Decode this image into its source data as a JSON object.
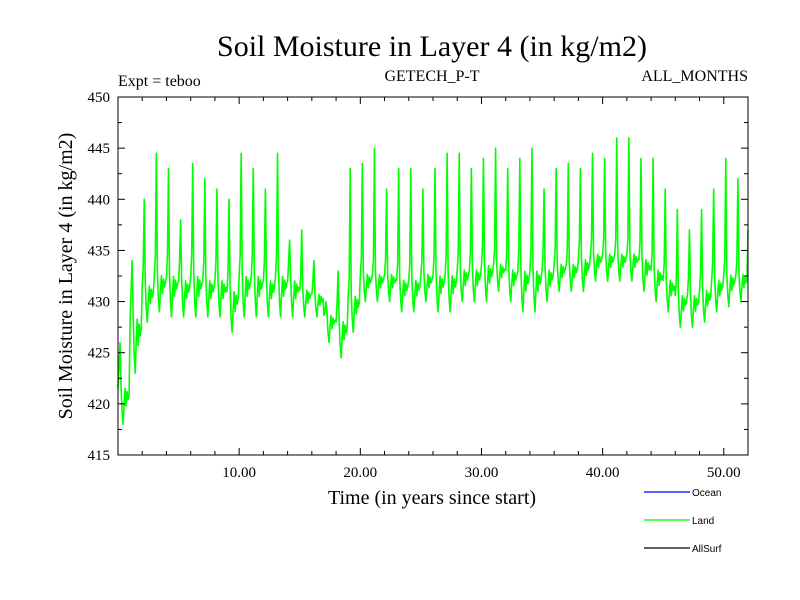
{
  "header": {
    "title": "Soil Moisture in Layer 4 (in kg/m2)",
    "expt": "Expt = teboo",
    "model": "GETECH_P-T",
    "period": "ALL_MONTHS"
  },
  "chart_data": {
    "type": "line",
    "title": "Soil Moisture in Layer 4 (in kg/m2)",
    "xlabel": "Time (in years since start)",
    "ylabel": "Soil Moisture in Layer 4 (in kg/m2)",
    "xlim": [
      0,
      52
    ],
    "ylim": [
      415,
      450
    ],
    "x_ticks": [
      10,
      20,
      30,
      40,
      50
    ],
    "x_tick_labels": [
      "10.00",
      "20.00",
      "30.00",
      "40.00",
      "50.00"
    ],
    "y_ticks": [
      415,
      420,
      425,
      430,
      435,
      440,
      445,
      450
    ],
    "y_tick_labels": [
      "415",
      "420",
      "425",
      "430",
      "435",
      "440",
      "445",
      "450"
    ],
    "grid": false,
    "legend_position": "bottom-right",
    "series": [
      {
        "name": "Ocean",
        "color": "#0000ff",
        "visible_in_plot": false
      },
      {
        "name": "Land",
        "color": "#00ff00",
        "sampling": "monthly, annual cycle reconstructed from yearly envelope",
        "annual_peaks": [
          426,
          434,
          440,
          444.5,
          443,
          438,
          443.5,
          442,
          441,
          440,
          444.5,
          443,
          441,
          444.5,
          436,
          437,
          434,
          430,
          433,
          443,
          443.5,
          445,
          441,
          443,
          443,
          441,
          443,
          444.5,
          444.5,
          443,
          444,
          445,
          443,
          444,
          445,
          441,
          443,
          443.5,
          443,
          444.5,
          444,
          446,
          446,
          444,
          444,
          441,
          439,
          437,
          439,
          441,
          444,
          442
        ],
        "annual_troughs": [
          418,
          423,
          428,
          429,
          428.5,
          428.5,
          428.5,
          428.5,
          428.5,
          427,
          428.5,
          428.5,
          428.5,
          428.5,
          428.5,
          428.5,
          428.5,
          426,
          424.5,
          427,
          430,
          430,
          430,
          429,
          429,
          430,
          429,
          429,
          430,
          430,
          430,
          431,
          430,
          429,
          429,
          430,
          431,
          431,
          431,
          432,
          432,
          432,
          432,
          431,
          430,
          429,
          427.5,
          427.5,
          428,
          429,
          429.5,
          430
        ],
        "annual_mid": [
          422,
          429,
          432,
          433,
          433,
          432.5,
          433,
          432.5,
          432.5,
          431.5,
          433,
          433,
          432.5,
          433,
          432.5,
          431.5,
          431,
          429,
          428.5,
          431,
          433,
          433,
          433,
          432.5,
          432.5,
          433,
          433,
          433,
          433.5,
          433.5,
          434,
          434,
          433.5,
          433.5,
          433.5,
          433.5,
          434,
          434,
          434.5,
          435,
          435,
          435,
          435,
          434.5,
          433.5,
          432.5,
          431,
          431,
          431.5,
          432.5,
          433,
          433
        ]
      },
      {
        "name": "AllSurf",
        "color": "#000000",
        "visible_in_plot": false
      }
    ]
  }
}
